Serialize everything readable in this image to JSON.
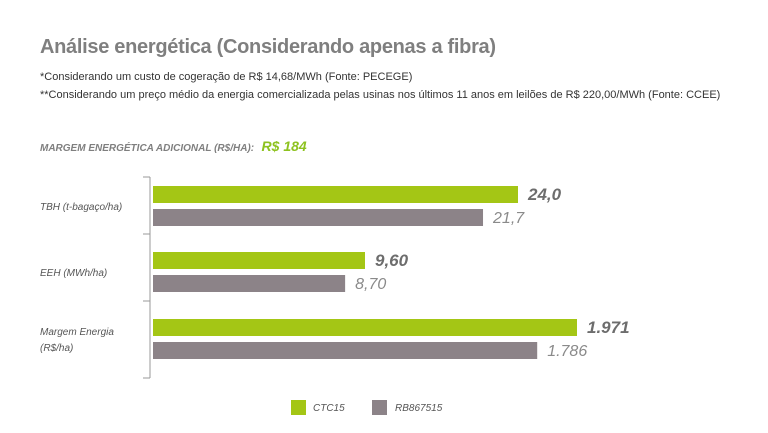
{
  "title": "Análise energética (Considerando apenas a fibra)",
  "notes": [
    "*Considerando um custo de cogeração de R$ 14,68/MWh (Fonte: PECEGE)",
    "**Considerando um preço médio da energia comercializada pelas usinas nos últimos 11 anos em leilões de R$ 220,00/MWh (Fonte: CCEE)"
  ],
  "margin": {
    "label": "MARGEM ENERGÉTICA ADICIONAL (R$/HA):",
    "value": "R$ 184"
  },
  "colors": {
    "series_a": "#a4c615",
    "series_b": "#8c8388",
    "title": "#7f7f7f",
    "margin_value": "#8dc21f"
  },
  "chart_data": {
    "type": "bar",
    "orientation": "horizontal",
    "note": "each category drawn relative to its own scale",
    "categories": [
      {
        "label_lines": [
          "TBH (t-bagaço/ha)"
        ]
      },
      {
        "label_lines": [
          "EEH (MWh/ha)"
        ]
      },
      {
        "label_lines": [
          "Margem Energia",
          "(R$/ha)"
        ]
      }
    ],
    "series": [
      {
        "name": "CTC15",
        "values": [
          24.0,
          9.6,
          1971
        ],
        "labels": [
          "24,0",
          "9,60",
          "1.971"
        ]
      },
      {
        "name": "RB867515",
        "values": [
          21.7,
          8.7,
          1786
        ],
        "labels": [
          "21,7",
          "8,70",
          "1.786"
        ]
      }
    ],
    "legend_position": "bottom",
    "grid": false
  }
}
